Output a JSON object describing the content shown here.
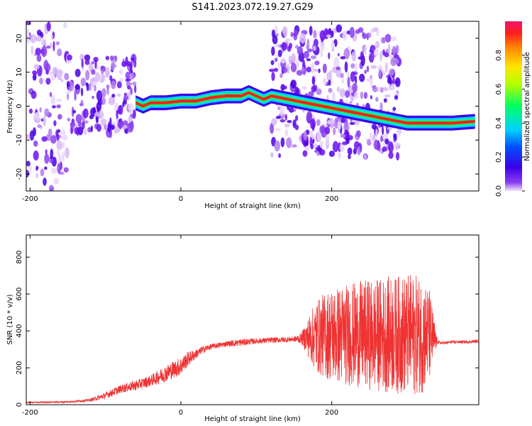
{
  "title": "S141.2023.072.19.27.G29",
  "chart_data": [
    {
      "type": "heatmap",
      "xlabel": "Height of straight line (km)",
      "ylabel": "Frequency (Hz)",
      "xlim": [
        -205,
        395
      ],
      "ylim": [
        -25,
        25
      ],
      "xticks": [
        -200,
        0,
        200
      ],
      "yticks": [
        -20,
        -10,
        0,
        10,
        20
      ],
      "colorbar": {
        "label": "Normalized spectral amplitude",
        "range": [
          0,
          1
        ],
        "ticks": [
          "0.0",
          "0.2",
          "0.4",
          "0.6",
          "0.8"
        ]
      },
      "dominant_frequency": {
        "x": [
          -60,
          -50,
          -40,
          -20,
          0,
          20,
          40,
          60,
          80,
          90,
          100,
          110,
          120,
          300,
          330,
          360,
          390
        ],
        "y": [
          1,
          0,
          1,
          1,
          1.5,
          1.5,
          2.5,
          3,
          3,
          4,
          3,
          2,
          3,
          -5,
          -5,
          -5,
          -4.5
        ]
      },
      "scatter_clusters": [
        {
          "x_range": [
            -205,
            -150
          ],
          "y_range": [
            -25,
            25
          ],
          "density": 0.35
        },
        {
          "x_range": [
            -150,
            -60
          ],
          "y_range": [
            -8,
            15
          ],
          "density": 0.7
        },
        {
          "x_range": [
            120,
            290
          ],
          "y_range": [
            -15,
            23
          ],
          "density": 0.55
        }
      ]
    },
    {
      "type": "line",
      "xlabel": "Height of straight line (km)",
      "ylabel": "SNR (10 * v/v)",
      "xlim": [
        -205,
        395
      ],
      "ylim": [
        0,
        920
      ],
      "xticks": [
        -200,
        0,
        200
      ],
      "yticks": [
        0,
        200,
        400,
        600,
        800
      ],
      "color": "#ef3232",
      "series": [
        {
          "x": [
            -205,
            -150,
            -120,
            -100,
            -80,
            -60,
            -40,
            -20,
            0,
            10,
            20,
            30,
            40,
            60,
            80,
            100,
            120,
            150,
            160,
            170,
            180,
            200,
            250,
            300,
            320,
            330,
            340,
            345,
            350,
            360,
            380,
            395
          ],
          "y": [
            12,
            15,
            25,
            50,
            85,
            105,
            130,
            170,
            210,
            250,
            275,
            300,
            315,
            330,
            338,
            345,
            350,
            355,
            360,
            365,
            370,
            380,
            380,
            380,
            380,
            375,
            340,
            335,
            335,
            340,
            340,
            345
          ],
          "noise": [
            3,
            5,
            8,
            18,
            22,
            28,
            30,
            45,
            50,
            40,
            25,
            20,
            15,
            15,
            20,
            15,
            15,
            15,
            30,
            120,
            200,
            260,
            300,
            330,
            320,
            250,
            10,
            8,
            8,
            8,
            8,
            8
          ]
        }
      ]
    }
  ]
}
